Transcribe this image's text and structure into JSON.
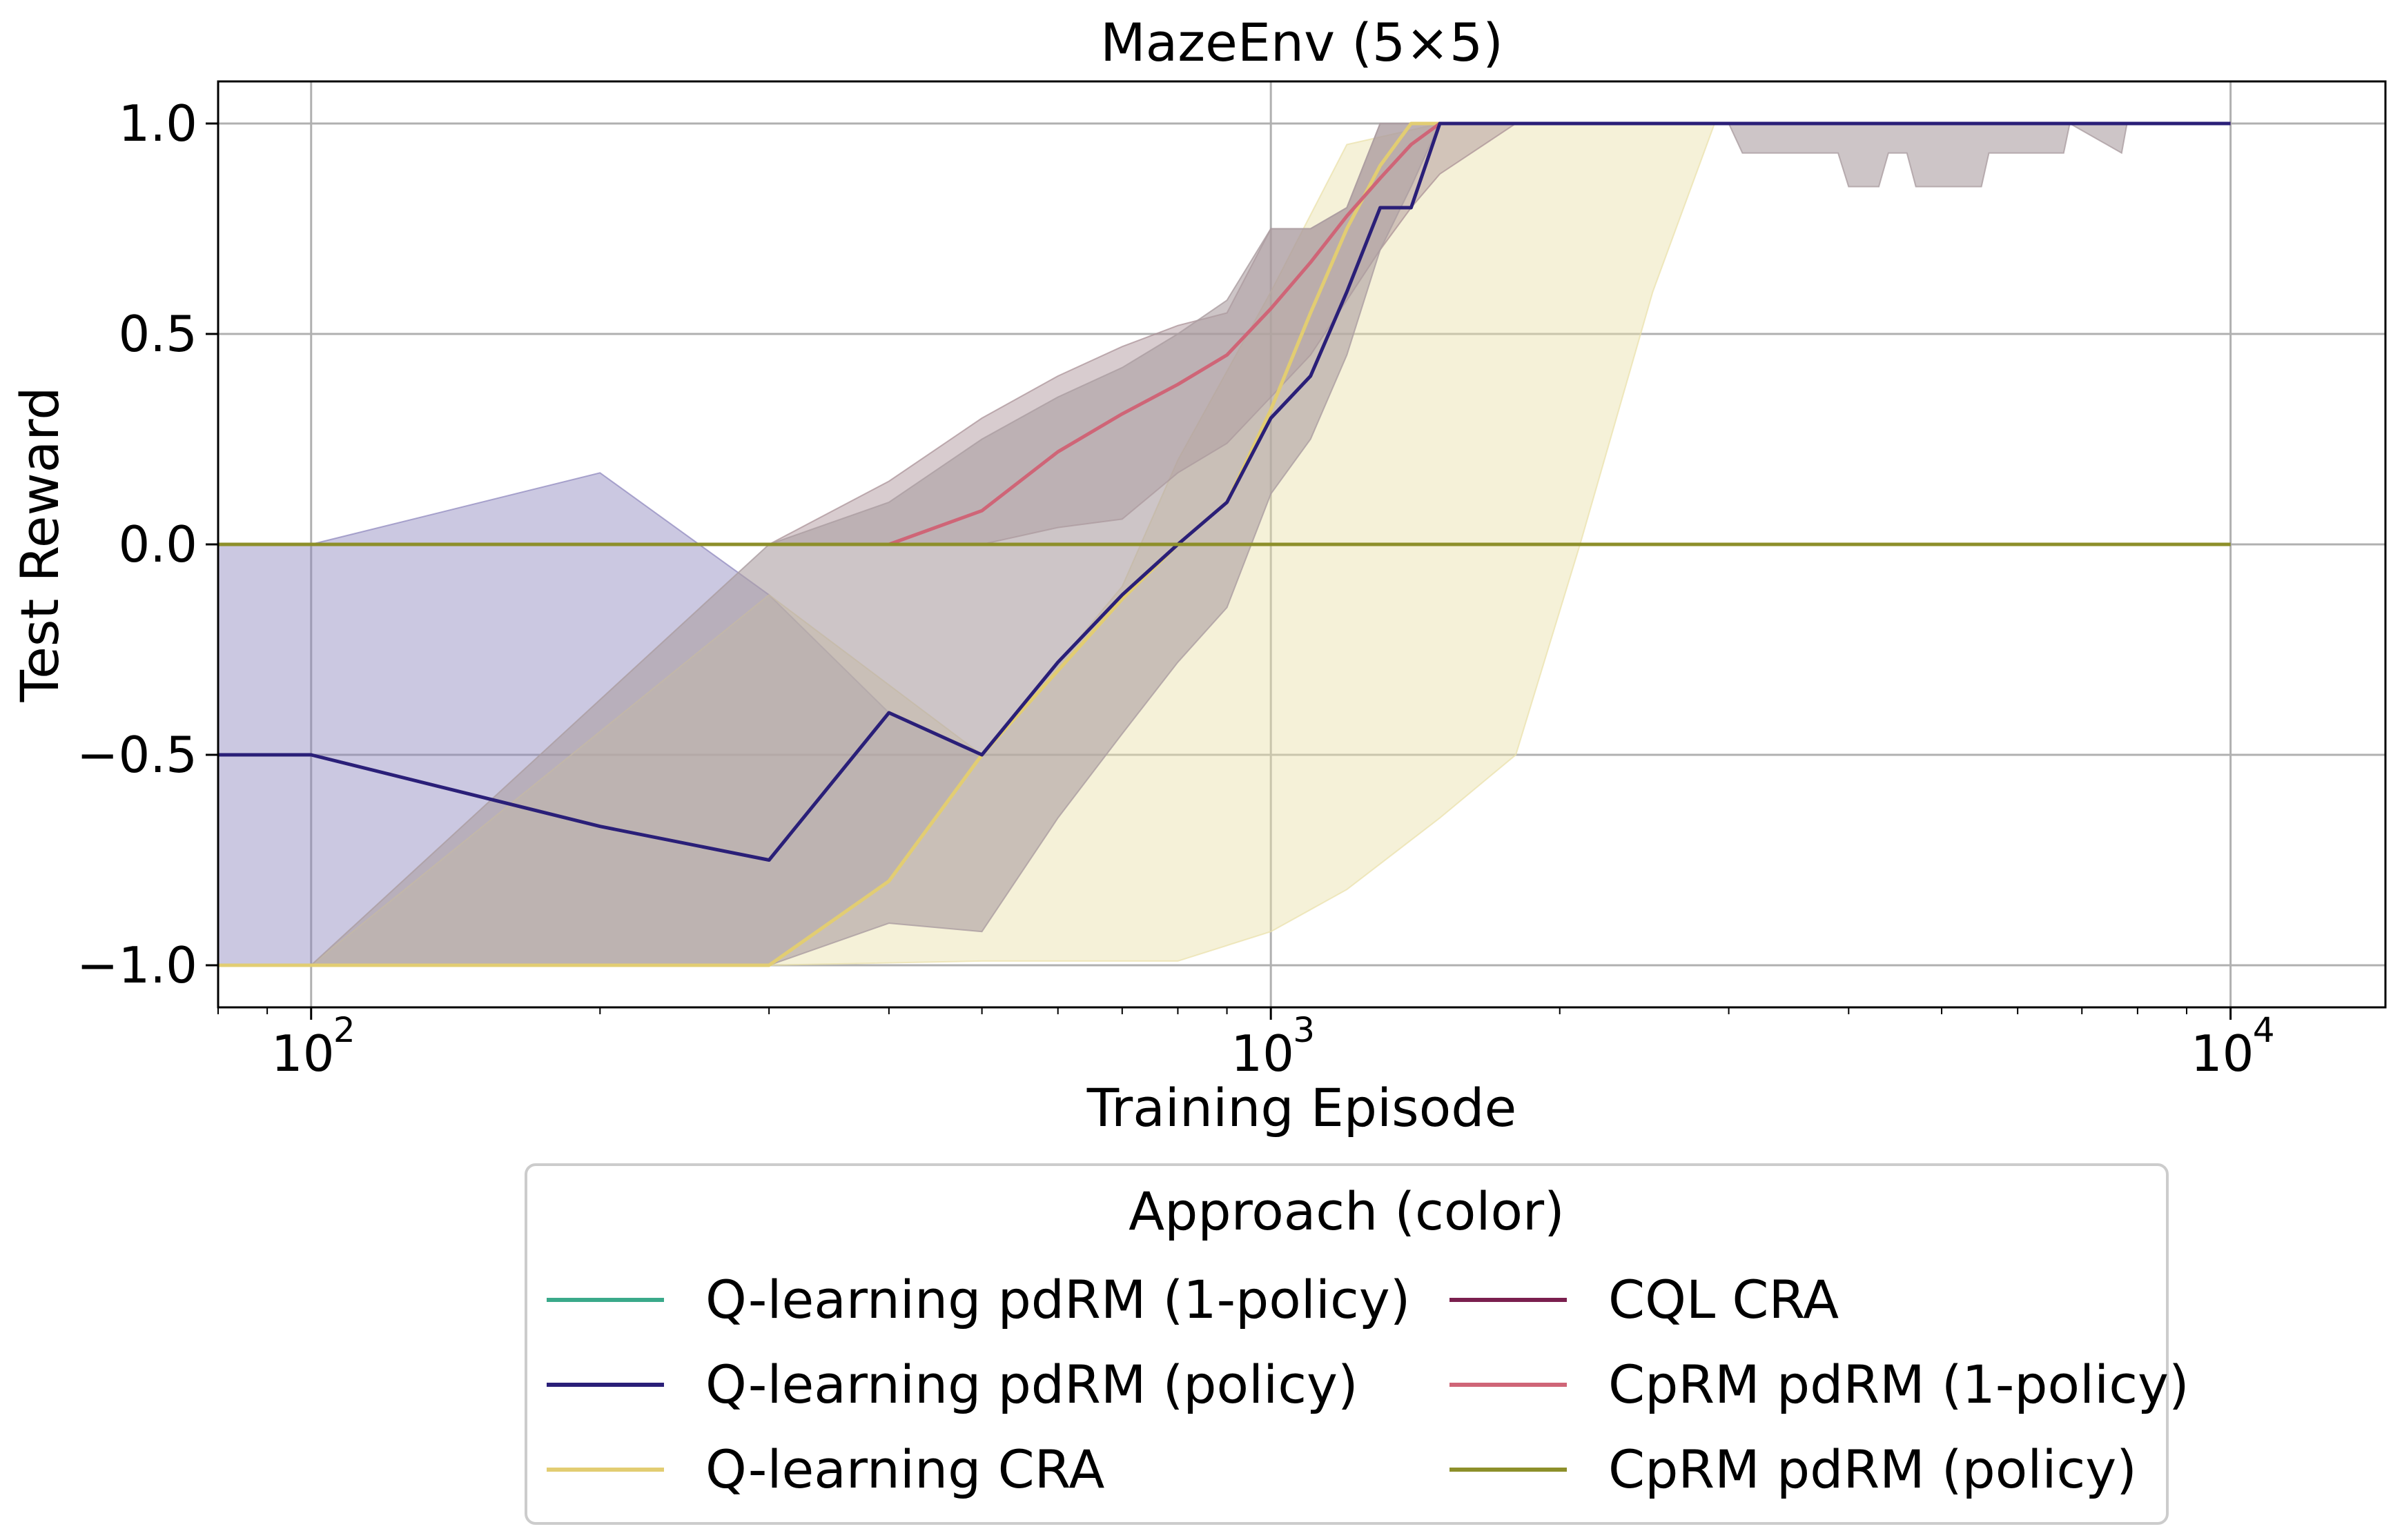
{
  "chart_data": {
    "type": "line",
    "title": "MazeEnv (5×5)",
    "xlabel": "Training Episode",
    "ylabel": "Test Reward",
    "xscale": "log",
    "xlim": [
      80,
      14500
    ],
    "ylim": [
      -1.1,
      1.1
    ],
    "grid": true,
    "xticks": [
      {
        "value": 100,
        "base": "10",
        "exp": "2"
      },
      {
        "value": 1000,
        "base": "10",
        "exp": "3"
      },
      {
        "value": 10000,
        "base": "10",
        "exp": "4"
      }
    ],
    "yticks": [
      {
        "value": 1.0,
        "label": "1.0"
      },
      {
        "value": 0.5,
        "label": "0.5"
      },
      {
        "value": 0.0,
        "label": "0.0"
      },
      {
        "value": -0.5,
        "label": "−0.5"
      },
      {
        "value": -1.0,
        "label": "−1.0"
      }
    ],
    "legend": {
      "title": "Approach (color)",
      "position": "bottom-center",
      "columns": 2
    },
    "series": [
      {
        "name": "Q-learning pdRM (1-policy)",
        "color": "#3aa98a",
        "x": [
          80,
          10000
        ],
        "values": [
          0,
          0
        ],
        "band_upper": [],
        "band_lower": []
      },
      {
        "name": "Q-learning pdRM (policy)",
        "color": "#2a1f78",
        "x": [
          80,
          100,
          200,
          300,
          400,
          500,
          600,
          700,
          800,
          900,
          1000,
          1100,
          1200,
          1300,
          1400,
          1500,
          2000,
          10000
        ],
        "values": [
          -0.5,
          -0.5,
          -0.67,
          -0.75,
          -0.4,
          -0.5,
          -0.28,
          -0.12,
          0.0,
          0.1,
          0.3,
          0.4,
          0.6,
          0.8,
          0.8,
          1.0,
          1.0,
          1.0
        ],
        "band_x": [
          80,
          100,
          200,
          300,
          400,
          500
        ],
        "band_upper": [
          0.0,
          0.0,
          0.17,
          -0.12,
          -0.4,
          -0.5
        ],
        "band_lower": [
          -1.0,
          -1.0,
          -1.0,
          -1.0,
          -0.8,
          -0.5
        ],
        "band_color": "#8c84bc"
      },
      {
        "name": "Q-learning CRA",
        "color": "#e2cd72",
        "x": [
          80,
          100,
          200,
          300,
          400,
          500,
          600,
          700,
          800,
          900,
          1000,
          1100,
          1200,
          1300,
          1400,
          1500,
          2000,
          10000
        ],
        "values": [
          -1.0,
          -1.0,
          -1.0,
          -1.0,
          -0.8,
          -0.5,
          -0.3,
          -0.13,
          0.0,
          0.1,
          0.32,
          0.55,
          0.75,
          0.9,
          1.0,
          1.0,
          1.0,
          1.0
        ],
        "band_x": [
          80,
          100,
          300,
          500,
          700,
          800,
          1000,
          1200,
          1500,
          1800,
          2100,
          2500,
          2900,
          10000
        ],
        "band_upper": [
          -1.0,
          -1.0,
          -0.12,
          -0.5,
          -0.1,
          0.2,
          0.6,
          0.95,
          1.0,
          1.0,
          1.0,
          1.0,
          1.0,
          1.0
        ],
        "band_lower": [
          -1.0,
          -1.0,
          -1.0,
          -0.99,
          -0.99,
          -0.99,
          -0.92,
          -0.82,
          -0.65,
          -0.5,
          0.0,
          0.6,
          1.0,
          1.0
        ],
        "band_color": "#e9dfa8"
      },
      {
        "name": "CQL CRA",
        "color": "#7a1f4e",
        "x": [
          80,
          10000
        ],
        "values": [
          0,
          0
        ],
        "band_upper": [],
        "band_lower": []
      },
      {
        "name": "CpRM pdRM (1-policy)",
        "color": "#cf6577",
        "x": [
          80,
          100,
          200,
          300,
          400,
          500,
          600,
          700,
          800,
          900,
          1000,
          1100,
          1200,
          1300,
          1400,
          1500,
          2000,
          10000
        ],
        "values": [
          0,
          0,
          0,
          0,
          0,
          0.08,
          0.22,
          0.31,
          0.38,
          0.45,
          0.56,
          0.67,
          0.78,
          0.87,
          0.95,
          1.0,
          1.0,
          1.0
        ],
        "band_x": [
          300,
          400,
          500,
          600,
          700,
          800,
          900,
          1000,
          1100,
          1200,
          1300,
          1400,
          1500,
          1800
        ],
        "band_upper": [
          0.0,
          0.15,
          0.3,
          0.4,
          0.47,
          0.52,
          0.55,
          0.75,
          0.75,
          0.8,
          1.0,
          1.0,
          1.0,
          1.0
        ],
        "band_lower": [
          0.0,
          0.0,
          0.0,
          0.04,
          0.06,
          0.17,
          0.24,
          0.35,
          0.45,
          0.58,
          0.7,
          0.8,
          0.88,
          1.0
        ],
        "band_color": "#a88e94"
      },
      {
        "name": "CpRM pdRM (policy)",
        "color": "#8d8f2a",
        "x": [
          80,
          10000
        ],
        "values": [
          0,
          0
        ],
        "band_upper": [],
        "band_lower": []
      }
    ],
    "extra_bands": [
      {
        "color": "#ab9ea1",
        "x": [
          80,
          100,
          300,
          400,
          500,
          600,
          700,
          800,
          900,
          1000,
          1100,
          1200,
          1300,
          1400,
          1500,
          1800
        ],
        "upper": [
          -1.0,
          -1.0,
          0.0,
          0.1,
          0.25,
          0.35,
          0.42,
          0.5,
          0.58,
          0.75,
          0.75,
          0.8,
          1.0,
          1.0,
          1.0,
          1.0
        ],
        "lower": [
          -1.0,
          -1.0,
          -1.0,
          -0.9,
          -0.92,
          -0.65,
          -0.45,
          -0.28,
          -0.15,
          0.12,
          0.25,
          0.45,
          0.7,
          0.85,
          1.0,
          1.0
        ]
      },
      {
        "color": "#ab9ea1",
        "x": [
          3000,
          3100,
          3900,
          4000,
          4300,
          4400,
          4600,
          4700,
          5500,
          5600,
          6700,
          6800,
          7700,
          7800
        ],
        "upper": [
          1.0,
          1.0,
          1.0,
          1.0,
          1.0,
          1.0,
          1.0,
          1.0,
          1.0,
          1.0,
          1.0,
          1.0,
          1.0,
          1.0
        ],
        "lower": [
          1.0,
          0.93,
          0.93,
          0.85,
          0.85,
          0.93,
          0.93,
          0.85,
          0.85,
          0.93,
          0.93,
          1.0,
          0.93,
          1.0
        ]
      }
    ]
  }
}
